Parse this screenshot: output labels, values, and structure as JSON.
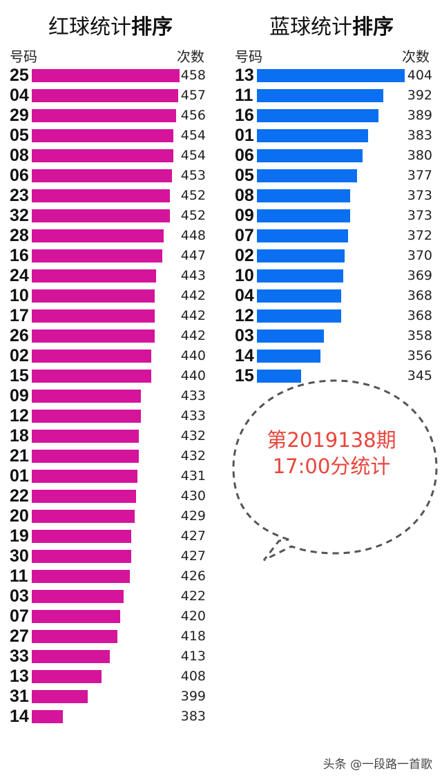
{
  "chart_data": [
    {
      "type": "bar",
      "orientation": "horizontal",
      "title": "红球统计排序",
      "title_plain": "红球统计",
      "title_bold": "排序",
      "header_left": "号码",
      "header_right": "次数",
      "color": "#d4149b",
      "categories": [
        "25",
        "04",
        "29",
        "05",
        "08",
        "06",
        "23",
        "32",
        "28",
        "16",
        "24",
        "10",
        "17",
        "26",
        "02",
        "15",
        "09",
        "12",
        "18",
        "21",
        "01",
        "22",
        "20",
        "19",
        "30",
        "11",
        "03",
        "07",
        "27",
        "33",
        "13",
        "31",
        "14"
      ],
      "values": [
        458,
        457,
        456,
        454,
        454,
        453,
        452,
        452,
        448,
        447,
        443,
        442,
        442,
        442,
        440,
        440,
        433,
        433,
        432,
        432,
        431,
        430,
        429,
        427,
        427,
        426,
        422,
        420,
        418,
        413,
        408,
        399,
        383
      ]
    },
    {
      "type": "bar",
      "orientation": "horizontal",
      "title": "蓝球统计排序",
      "title_plain": "蓝球统计",
      "title_bold": "排序",
      "header_left": "号码",
      "header_right": "次数",
      "color": "#0a6ff0",
      "categories": [
        "13",
        "11",
        "16",
        "01",
        "06",
        "05",
        "08",
        "09",
        "07",
        "02",
        "10",
        "04",
        "12",
        "03",
        "14",
        "15"
      ],
      "values": [
        404,
        392,
        389,
        383,
        380,
        377,
        373,
        373,
        372,
        370,
        369,
        368,
        368,
        358,
        356,
        345
      ]
    }
  ],
  "annotation": {
    "line1": "第2019138期",
    "line2": "17:00分统计"
  },
  "watermark": "头条 @一段路一首歌"
}
